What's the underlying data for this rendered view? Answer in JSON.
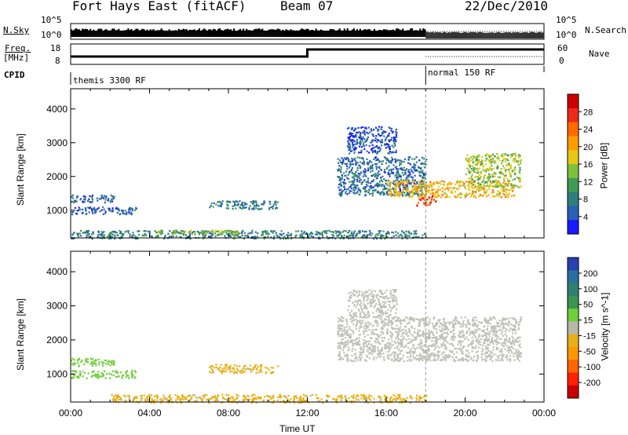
{
  "header": {
    "station": "Fort Hays East (fitACF)",
    "beam": "Beam 07",
    "date": "22/Dec/2010"
  },
  "top_panels": {
    "nsky_label": "N.Sky",
    "nsearch_label": "N.Search",
    "freq_label_1": "Freq.",
    "freq_label_2": "[MHz]",
    "nave_label": "Nave",
    "cpid_label": "CPID",
    "tick_10e5": "10^5",
    "tick_10e0": "10^0",
    "freq_ticks": [
      "18",
      "8"
    ],
    "nave_ticks": [
      "60",
      "0"
    ],
    "cpid_segments": [
      {
        "label": "themis 3300 RF",
        "start_hour": 0
      },
      {
        "label": "normal 150 RF",
        "start_hour": 18
      }
    ]
  },
  "colors": {
    "power_scale": [
      "#1a1aff",
      "#2a5fb8",
      "#2e7e7e",
      "#3f9a55",
      "#7fc03b",
      "#e8c814",
      "#ff9d00",
      "#ff6a00",
      "#ee2a1a",
      "#cc0000"
    ],
    "velocity_scale": [
      "#2a3fb0",
      "#2a70a0",
      "#2f8070",
      "#3a9550",
      "#6fcf3a",
      "#b8b8aa",
      "#e8b018",
      "#ff9900",
      "#ff6600",
      "#ff2200",
      "#cc0000"
    ],
    "ground_scatter": "#c0c0b8"
  },
  "chart_data": [
    {
      "type": "heatmap",
      "title": "Power",
      "xlabel": "",
      "ylabel": "Slant Range [km]",
      "xlim": [
        0,
        24
      ],
      "ylim": [
        180,
        4600
      ],
      "y_ticks": [
        "1000",
        "2000",
        "3000",
        "4000"
      ],
      "colorbar_label": "Power [dB]",
      "colorbar_ticks": [
        "4",
        "8",
        "12",
        "16",
        "20",
        "24",
        "28"
      ],
      "colorbar_range": [
        0,
        30
      ],
      "regions": [
        {
          "t0": 0.0,
          "t1": 2.2,
          "r0": 1250,
          "r1": 1480,
          "value": 6
        },
        {
          "t0": 0.0,
          "t1": 3.3,
          "r0": 900,
          "r1": 1120,
          "value": 5
        },
        {
          "t0": 0.0,
          "t1": 18.0,
          "r0": 180,
          "r1": 420,
          "value": 8
        },
        {
          "t0": 4.0,
          "t1": 8.5,
          "r0": 300,
          "r1": 430,
          "value": 14
        },
        {
          "t0": 7.0,
          "t1": 10.5,
          "r0": 1050,
          "r1": 1300,
          "value": 7
        },
        {
          "t0": 13.5,
          "t1": 18.0,
          "r0": 1450,
          "r1": 2600,
          "value": 6
        },
        {
          "t0": 14.0,
          "t1": 16.5,
          "r0": 2700,
          "r1": 3500,
          "value": 4
        },
        {
          "t0": 16.0,
          "t1": 22.5,
          "r0": 1400,
          "r1": 1900,
          "value": 18
        },
        {
          "t0": 17.5,
          "t1": 18.5,
          "r0": 1150,
          "r1": 1450,
          "value": 24
        },
        {
          "t0": 20.0,
          "t1": 22.8,
          "r0": 1700,
          "r1": 2700,
          "value": 14
        }
      ]
    },
    {
      "type": "heatmap",
      "title": "Velocity",
      "xlabel": "Time UT",
      "ylabel": "Slant Range [km]",
      "xlim": [
        0,
        24
      ],
      "ylim": [
        180,
        4600
      ],
      "x_ticks": [
        "00:00",
        "04:00",
        "08:00",
        "12:00",
        "16:00",
        "20:00",
        "00:00"
      ],
      "y_ticks": [
        "1000",
        "2000",
        "3000",
        "4000"
      ],
      "colorbar_label": "Velocity [m s^-1]",
      "colorbar_ticks": [
        "200",
        "100",
        "50",
        "15",
        "-15",
        "-50",
        "-100",
        "-200"
      ],
      "colorbar_range": [
        -250,
        250
      ],
      "regions": [
        {
          "t0": 0.0,
          "t1": 2.2,
          "r0": 1250,
          "r1": 1480,
          "value": 40
        },
        {
          "t0": 0.0,
          "t1": 3.3,
          "r0": 900,
          "r1": 1120,
          "value": 40
        },
        {
          "t0": 2.0,
          "t1": 18.0,
          "r0": 180,
          "r1": 420,
          "value": -40
        },
        {
          "t0": 7.0,
          "t1": 10.5,
          "r0": 1050,
          "r1": 1300,
          "value": -40
        },
        {
          "t0": 13.5,
          "t1": 22.8,
          "r0": 1400,
          "r1": 2700,
          "value": 0
        },
        {
          "t0": 14.0,
          "t1": 16.5,
          "r0": 2700,
          "r1": 3500,
          "value": 0
        }
      ]
    }
  ]
}
